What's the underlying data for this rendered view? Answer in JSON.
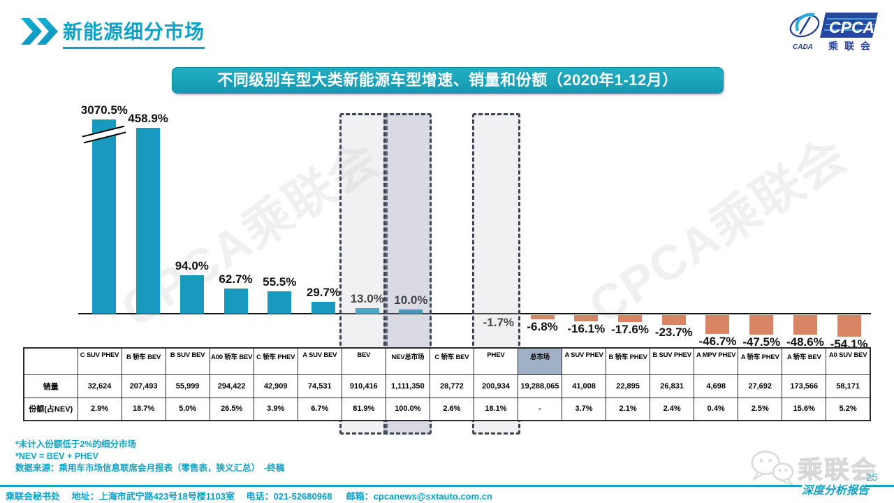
{
  "header": {
    "title": "新能源细分市场"
  },
  "logo": {
    "cpca": "CPCA",
    "cada": "CADA",
    "name_cn": "乘联会"
  },
  "watermark_text": "CPCA乘联会",
  "chart_data": {
    "type": "bar",
    "title": "不同级别车型大类新能源车型增速、销量和份额（2020年1-12月）",
    "unit": "%",
    "categories": [
      "C SUV PHEV",
      "B 轿车 BEV",
      "B SUV BEV",
      "A00 轿车 BEV",
      "C 轿车 PHEV",
      "A SUV BEV",
      "BEV",
      "NEV总市场",
      "C 轿车 BEV",
      "PHEV",
      "总市场",
      "A SUV PHEV",
      "B 轿车 PHEV",
      "B SUV PHEV",
      "A MPV PHEV",
      "A 轿车 PHEV",
      "A 轿车 BEV",
      "A0 SUV BEV"
    ],
    "values": [
      3070.5,
      458.9,
      94.0,
      62.7,
      55.5,
      29.7,
      13.0,
      10.0,
      null,
      -1.7,
      -6.8,
      -16.1,
      -17.6,
      -23.7,
      -46.7,
      -47.5,
      -48.6,
      -54.1
    ],
    "axis_break_category": "C SUV PHEV",
    "highlight_boxes": [
      {
        "category": "BEV",
        "strong": false
      },
      {
        "category": "NEV总市场",
        "strong": true
      },
      {
        "category": "PHEV",
        "strong": false
      }
    ],
    "positive_color": "#189abe",
    "negative_color": "#d98463"
  },
  "table": {
    "row_labels": {
      "sales": "销量",
      "share": "份额(占NEV)"
    },
    "columns": [
      {
        "label": "C SUV PHEV",
        "sales": "32,624",
        "share": "2.9%",
        "highlight": false
      },
      {
        "label": "B 轿车 BEV",
        "sales": "207,493",
        "share": "18.7%",
        "highlight": false
      },
      {
        "label": "B SUV BEV",
        "sales": "55,999",
        "share": "5.0%",
        "highlight": false
      },
      {
        "label": "A00 轿车 BEV",
        "sales": "294,422",
        "share": "26.5%",
        "highlight": false
      },
      {
        "label": "C 轿车 PHEV",
        "sales": "42,909",
        "share": "3.9%",
        "highlight": false
      },
      {
        "label": "A SUV BEV",
        "sales": "74,531",
        "share": "6.7%",
        "highlight": false
      },
      {
        "label": "BEV",
        "sales": "910,416",
        "share": "81.9%",
        "highlight": false
      },
      {
        "label": "NEV总市场",
        "sales": "1,111,350",
        "share": "100.0%",
        "highlight": false
      },
      {
        "label": "C 轿车 BEV",
        "sales": "28,772",
        "share": "2.6%",
        "highlight": false
      },
      {
        "label": "PHEV",
        "sales": "200,934",
        "share": "18.1%",
        "highlight": false
      },
      {
        "label": "总市场",
        "sales": "19,288,065",
        "share": "-",
        "highlight": true
      },
      {
        "label": "A SUV PHEV",
        "sales": "41,008",
        "share": "3.7%",
        "highlight": false
      },
      {
        "label": "B 轿车 PHEV",
        "sales": "22,895",
        "share": "2.1%",
        "highlight": false
      },
      {
        "label": "B SUV PHEV",
        "sales": "26,831",
        "share": "2.4%",
        "highlight": false
      },
      {
        "label": "A MPV PHEV",
        "sales": "4,698",
        "share": "0.4%",
        "highlight": false
      },
      {
        "label": "A 轿车 PHEV",
        "sales": "27,692",
        "share": "2.5%",
        "highlight": false
      },
      {
        "label": "A 轿车 BEV",
        "sales": "173,566",
        "share": "15.6%",
        "highlight": false
      },
      {
        "label": "A0 SUV BEV",
        "sales": "58,171",
        "share": "5.2%",
        "highlight": false
      }
    ]
  },
  "notes": [
    "*未计入份额低于2%的细分市场",
    "*NEV  =  BEV  +  PHEV",
    "数据来源：乘用车市场信息联席会月报表（零售表，狭义汇总）　-终稿"
  ],
  "footer": {
    "contact": "乘联会秘书处　 地址：上海市武宁路423号18号楼1103室 　电话：021-52680968 　 邮箱：cpcanews@sxtauto.com.cn",
    "report_label": "深度分析报告",
    "page_number": "25",
    "wechat_label": "乘联会"
  }
}
